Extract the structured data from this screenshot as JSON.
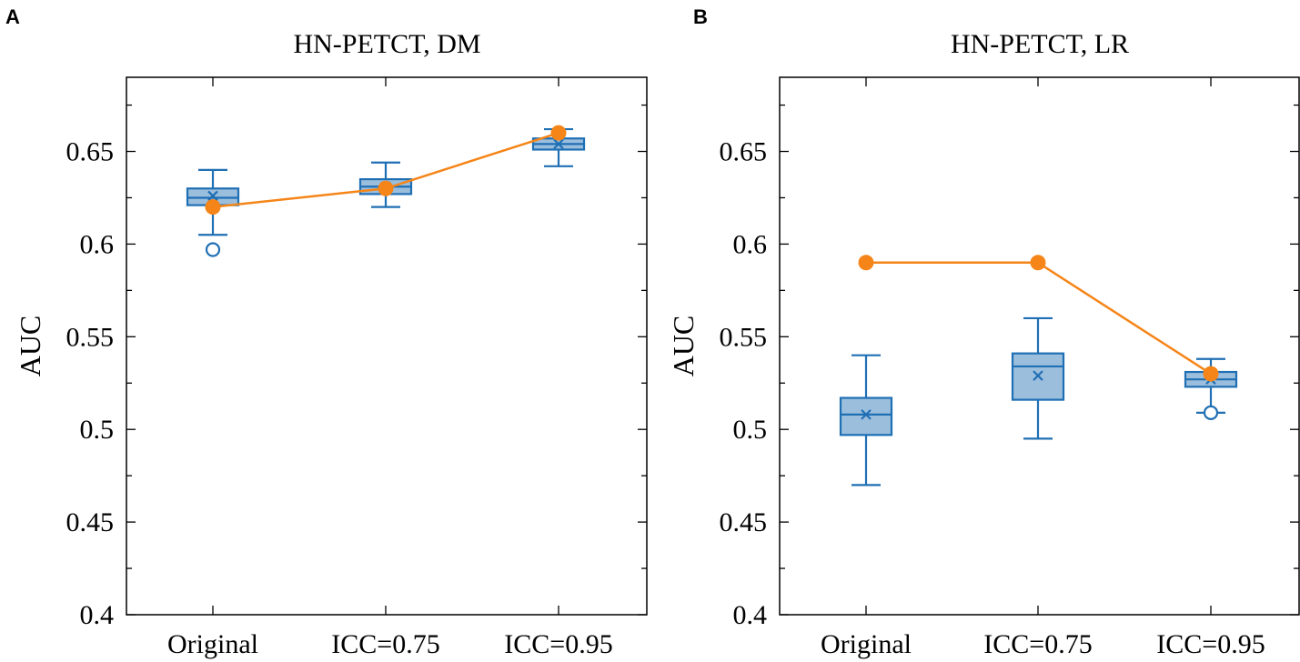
{
  "chart_data": [
    {
      "panel": "A",
      "type": "box",
      "title": "HN-PETCT, DM",
      "xlabel": "",
      "ylabel": "AUC",
      "ylim": [
        0.4,
        0.69
      ],
      "yticks": [
        0.4,
        0.45,
        0.5,
        0.55,
        0.6,
        0.65
      ],
      "ytick_labels": [
        "0.4",
        "0.45",
        "0.5",
        "0.55",
        "0.6",
        "0.65"
      ],
      "categories": [
        "Original",
        "ICC=0.75",
        "ICC=0.95"
      ],
      "boxes": [
        {
          "whisker_low": 0.605,
          "q1": 0.621,
          "median": 0.625,
          "q3": 0.63,
          "whisker_high": 0.64,
          "mean": 0.626,
          "outliers": [
            0.597
          ]
        },
        {
          "whisker_low": 0.62,
          "q1": 0.627,
          "median": 0.631,
          "q3": 0.635,
          "whisker_high": 0.644,
          "mean": 0.631,
          "outliers": []
        },
        {
          "whisker_low": 0.642,
          "q1": 0.651,
          "median": 0.654,
          "q3": 0.657,
          "whisker_high": 0.662,
          "mean": 0.654,
          "outliers": []
        }
      ],
      "reference_series": {
        "values": [
          0.62,
          0.63,
          0.66
        ]
      }
    },
    {
      "panel": "B",
      "type": "box",
      "title": "HN-PETCT, LR",
      "xlabel": "",
      "ylabel": "AUC",
      "ylim": [
        0.4,
        0.69
      ],
      "yticks": [
        0.4,
        0.45,
        0.5,
        0.55,
        0.6,
        0.65
      ],
      "ytick_labels": [
        "0.4",
        "0.45",
        "0.5",
        "0.55",
        "0.6",
        "0.65"
      ],
      "categories": [
        "Original",
        "ICC=0.75",
        "ICC=0.95"
      ],
      "boxes": [
        {
          "whisker_low": 0.47,
          "q1": 0.497,
          "median": 0.508,
          "q3": 0.517,
          "whisker_high": 0.54,
          "mean": 0.508,
          "outliers": []
        },
        {
          "whisker_low": 0.495,
          "q1": 0.516,
          "median": 0.534,
          "q3": 0.541,
          "whisker_high": 0.56,
          "mean": 0.529,
          "outliers": []
        },
        {
          "whisker_low": 0.509,
          "q1": 0.523,
          "median": 0.527,
          "q3": 0.531,
          "whisker_high": 0.538,
          "mean": 0.527,
          "outliers": [
            0.509
          ]
        }
      ],
      "reference_series": {
        "values": [
          0.59,
          0.59,
          0.53
        ]
      }
    }
  ]
}
